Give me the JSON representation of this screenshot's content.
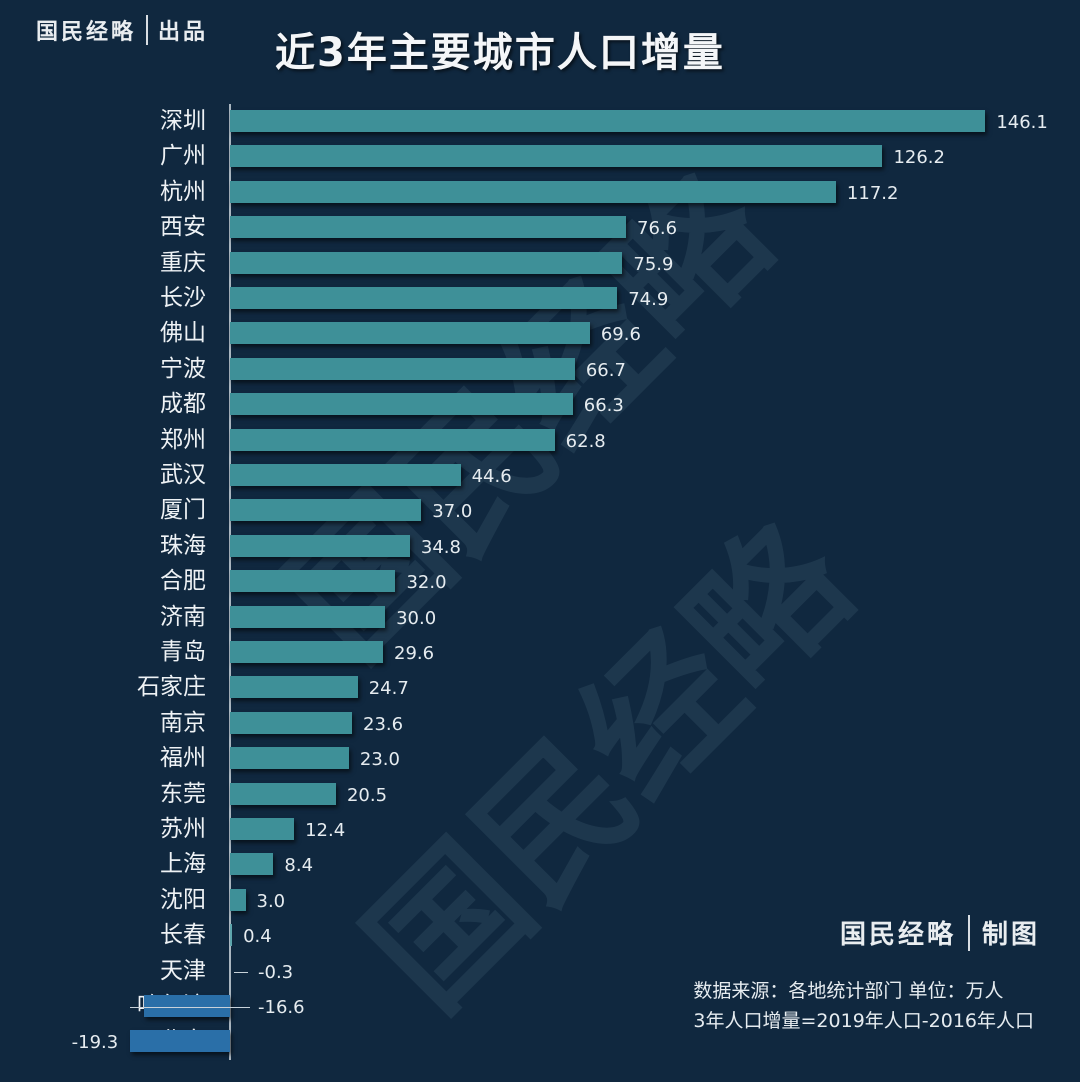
{
  "header": {
    "brand_left": "国民经略",
    "brand_right": "出品",
    "title": "近3年主要城市人口增量"
  },
  "footer": {
    "brand_left": "国民经略",
    "brand_right": "制图",
    "source_line": "数据来源：各地统计部门 单位：万人",
    "formula_line": "3年人口增量=2019年人口-2016年人口"
  },
  "watermark": "国民经略",
  "colors": {
    "background": "#10283f",
    "positive_bar": "#3e9098",
    "negative_bar": "#2a6fa8",
    "text": "#e8eef2"
  },
  "chart_data": {
    "type": "bar",
    "orientation": "horizontal",
    "title": "近3年主要城市人口增量",
    "xlabel": "",
    "ylabel": "",
    "unit": "万人",
    "grid": false,
    "legend": null,
    "categories": [
      "深圳",
      "广州",
      "杭州",
      "西安",
      "重庆",
      "长沙",
      "佛山",
      "宁波",
      "成都",
      "郑州",
      "武汉",
      "厦门",
      "珠海",
      "合肥",
      "济南",
      "青岛",
      "石家庄",
      "南京",
      "福州",
      "东莞",
      "苏州",
      "上海",
      "沈阳",
      "长春",
      "天津",
      "哈尔滨",
      "北京"
    ],
    "values": [
      146.1,
      126.2,
      117.2,
      76.6,
      75.9,
      74.9,
      69.6,
      66.7,
      66.3,
      62.8,
      44.6,
      37.0,
      34.8,
      32.0,
      30.0,
      29.6,
      24.7,
      23.6,
      23.0,
      20.5,
      12.4,
      8.4,
      3.0,
      0.4,
      -0.3,
      -16.6,
      -19.3
    ],
    "value_labels": [
      "146.1",
      "126.2",
      "117.2",
      "76.6",
      "75.9",
      "74.9",
      "69.6",
      "66.7",
      "66.3",
      "62.8",
      "44.6",
      "37.0",
      "34.8",
      "32.0",
      "30.0",
      "29.6",
      "24.7",
      "23.6",
      "23.0",
      "20.5",
      "12.4",
      "8.4",
      "3.0",
      "0.4",
      "-0.3",
      "-16.6",
      "-19.3"
    ],
    "annotations": [
      "数据来源：各地统计部门 单位：万人",
      "3年人口增量=2019年人口-2016年人口"
    ]
  }
}
